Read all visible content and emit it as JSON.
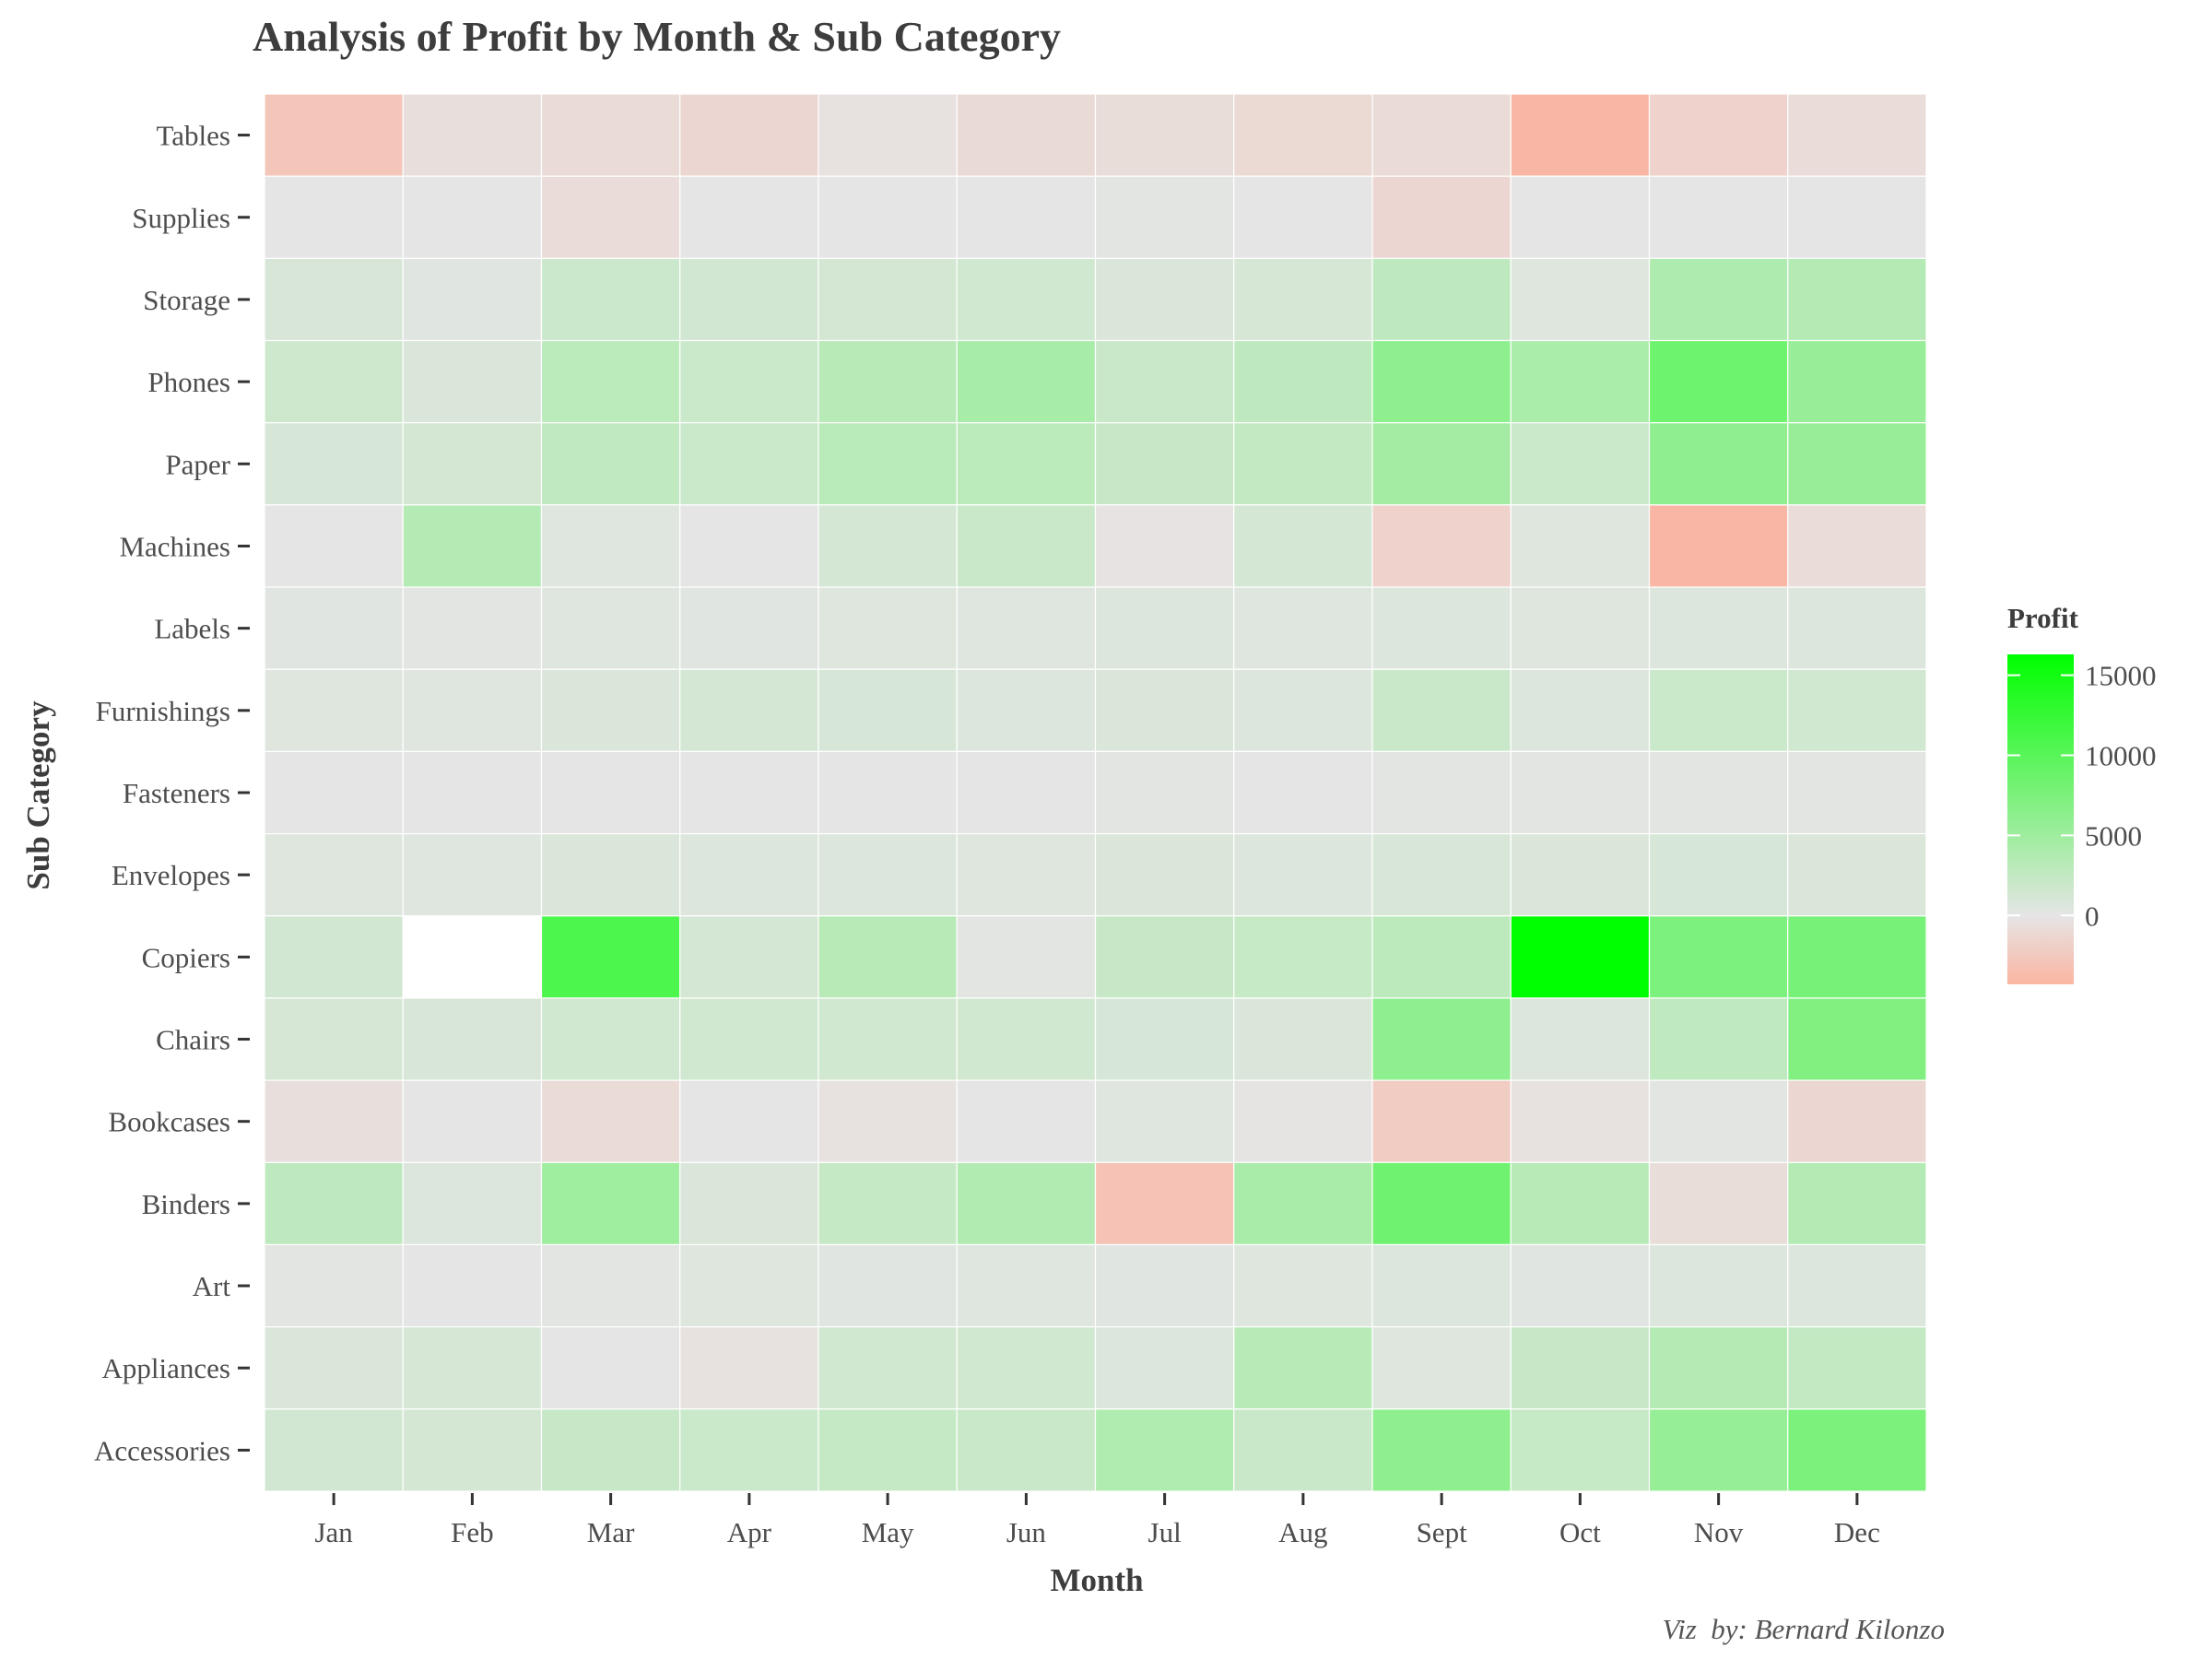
{
  "chart_data": {
    "type": "heatmap",
    "title": "Analysis of Profit by Month & Sub Category",
    "xlabel": "Month",
    "ylabel": "Sub Category",
    "caption": "Viz  by: Bernard Kilonzo",
    "legend": {
      "title": "Profit",
      "position": "right",
      "ticks": [
        0,
        5000,
        10000,
        15000
      ],
      "tick_labels": [
        "0",
        "5000",
        "10000",
        "15000"
      ],
      "range": [
        -4300,
        16300
      ],
      "low_color": "#fbb5a2",
      "mid_color": "#e5e5e5",
      "high_color": "#00ff00"
    },
    "months": [
      "Jan",
      "Feb",
      "Mar",
      "Apr",
      "May",
      "Jun",
      "Jul",
      "Aug",
      "Sept",
      "Oct",
      "Nov",
      "Dec"
    ],
    "categories": [
      "Tables",
      "Supplies",
      "Storage",
      "Phones",
      "Paper",
      "Machines",
      "Labels",
      "Furnishings",
      "Fasteners",
      "Envelopes",
      "Copiers",
      "Chairs",
      "Bookcases",
      "Binders",
      "Art",
      "Appliances",
      "Accessories"
    ],
    "values": [
      [
        -2800,
        -600,
        -900,
        -1300,
        -400,
        -1000,
        -700,
        -1100,
        -900,
        -4200,
        -1700,
        -800
      ],
      [
        0,
        0,
        -800,
        0,
        0,
        0,
        200,
        0,
        -1300,
        0,
        0,
        0
      ],
      [
        900,
        300,
        1800,
        1400,
        1300,
        1600,
        700,
        1100,
        2800,
        500,
        3900,
        3500
      ],
      [
        1700,
        800,
        3000,
        1900,
        3300,
        4400,
        2000,
        2800,
        6200,
        4200,
        8500,
        5500
      ],
      [
        1000,
        1300,
        2600,
        1900,
        3100,
        3000,
        2100,
        2400,
        4600,
        1900,
        6100,
        5500
      ],
      [
        0,
        3500,
        400,
        0,
        1200,
        2000,
        -200,
        1200,
        -1700,
        500,
        -4200,
        -800
      ],
      [
        300,
        200,
        400,
        300,
        500,
        400,
        600,
        400,
        600,
        500,
        600,
        600
      ],
      [
        500,
        400,
        700,
        1200,
        1000,
        600,
        800,
        600,
        2000,
        600,
        1900,
        1500
      ],
      [
        100,
        100,
        100,
        100,
        100,
        100,
        200,
        100,
        200,
        200,
        200,
        200
      ],
      [
        500,
        400,
        700,
        600,
        600,
        500,
        700,
        600,
        900,
        800,
        1000,
        800
      ],
      [
        1400,
        null,
        10800,
        1200,
        3300,
        200,
        2100,
        2200,
        2900,
        16300,
        7400,
        7800
      ],
      [
        1100,
        900,
        1600,
        1600,
        1500,
        1500,
        1000,
        700,
        6200,
        600,
        2700,
        7100
      ],
      [
        -500,
        0,
        -900,
        0,
        -300,
        0,
        400,
        -100,
        -2200,
        -300,
        200,
        -1300
      ],
      [
        2800,
        600,
        5000,
        800,
        2300,
        3600,
        -3100,
        4300,
        8400,
        3200,
        -700,
        3500
      ],
      [
        200,
        100,
        200,
        500,
        300,
        400,
        300,
        500,
        600,
        300,
        600,
        600
      ],
      [
        700,
        1100,
        100,
        -300,
        1500,
        1500,
        600,
        3200,
        500,
        2100,
        3500,
        2400
      ],
      [
        1400,
        1300,
        2100,
        1900,
        2300,
        2000,
        3800,
        2000,
        6100,
        2200,
        5600,
        7500
      ]
    ],
    "grid": false
  }
}
